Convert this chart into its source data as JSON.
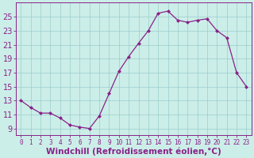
{
  "x": [
    0,
    1,
    2,
    3,
    4,
    5,
    6,
    7,
    8,
    9,
    10,
    11,
    12,
    13,
    14,
    15,
    16,
    17,
    18,
    19,
    20,
    21,
    22,
    23
  ],
  "y": [
    13,
    12,
    11.2,
    11.2,
    10.5,
    9.5,
    9.2,
    9.0,
    10.8,
    14.0,
    17.2,
    19.3,
    21.2,
    23.0,
    25.5,
    25.8,
    24.5,
    24.2,
    24.5,
    24.7,
    23.0,
    22.0,
    17.0,
    15.0
  ],
  "line_color": "#882288",
  "marker": "D",
  "marker_size": 2.5,
  "bg_color": "#cceee8",
  "grid_color": "#99cccc",
  "xlabel": "Windchill (Refroidissement éolien,°C)",
  "xlabel_color": "#882288",
  "xlabel_fontsize": 7.5,
  "tick_color": "#882288",
  "ytick_fontsize": 7,
  "xtick_fontsize": 5.5,
  "ylim": [
    8.0,
    27.0
  ],
  "yticks": [
    9,
    11,
    13,
    15,
    17,
    19,
    21,
    23,
    25
  ],
  "xlim": [
    -0.5,
    23.5
  ],
  "xticks": [
    0,
    1,
    2,
    3,
    4,
    5,
    6,
    7,
    8,
    9,
    10,
    11,
    12,
    13,
    14,
    15,
    16,
    17,
    18,
    19,
    20,
    21,
    22,
    23
  ]
}
